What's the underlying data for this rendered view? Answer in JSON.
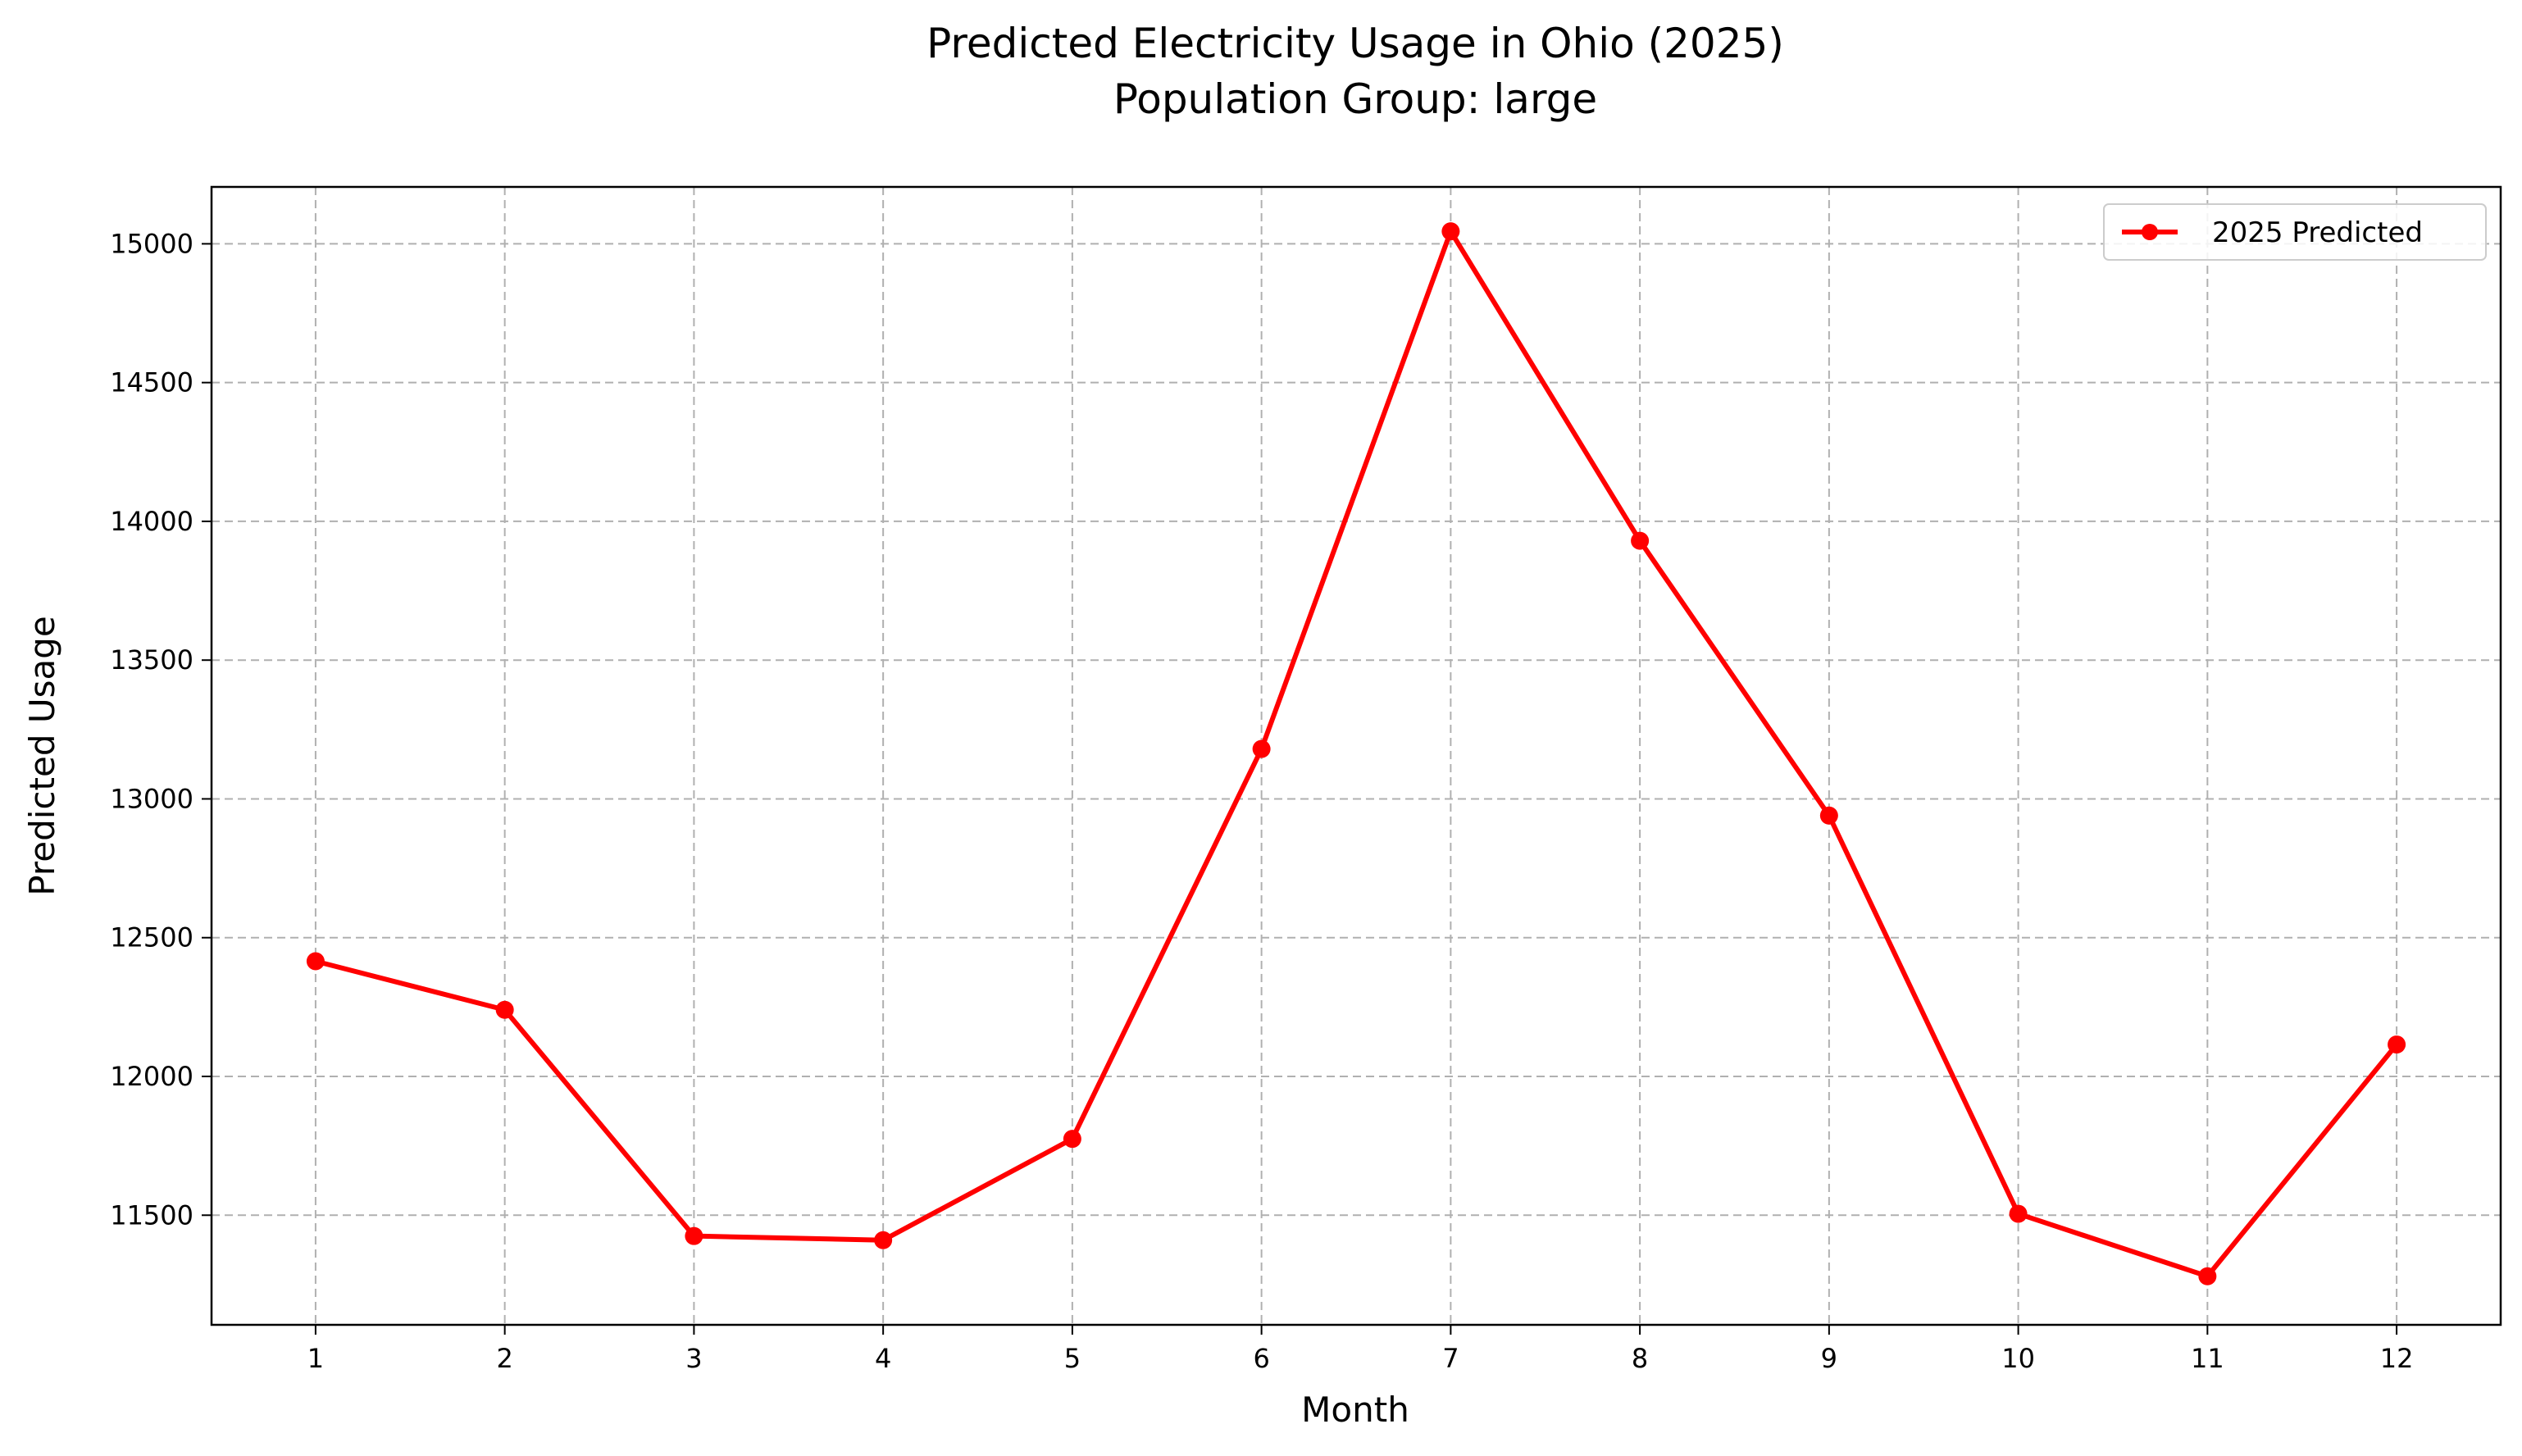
{
  "chart_data": {
    "type": "line",
    "title": "Predicted Electricity Usage in Ohio (2025)",
    "subtitle": "Population Group: large",
    "xlabel": "Month",
    "ylabel": "Predicted Usage",
    "x": [
      1,
      2,
      3,
      4,
      5,
      6,
      7,
      8,
      9,
      10,
      11,
      12
    ],
    "xlim": [
      0.45,
      12.55
    ],
    "ylim": [
      11105,
      15205
    ],
    "xticks": [
      1,
      2,
      3,
      4,
      5,
      6,
      7,
      8,
      9,
      10,
      11,
      12
    ],
    "yticks": [
      11500,
      12000,
      12500,
      13000,
      13500,
      14000,
      14500,
      15000
    ],
    "grid": true,
    "legend_position": "top-right",
    "series": [
      {
        "name": "2025 Predicted",
        "color": "#ff0000",
        "marker": "circle",
        "values": [
          12415,
          12240,
          11425,
          11410,
          11775,
          13180,
          15045,
          13930,
          12940,
          11505,
          11280,
          12115
        ]
      }
    ]
  }
}
